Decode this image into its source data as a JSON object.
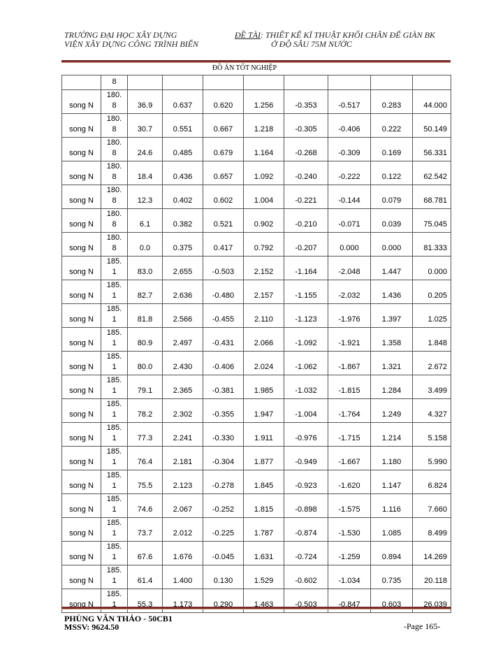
{
  "header": {
    "left_line1": "TRƯỜNG ĐẠI HỌC XÂY DỰNG",
    "left_line2": "VIỆN XÂY DỰNG CÔNG TRÌNH BIỂN",
    "topic_label": "ĐỀ TÀI",
    "topic_line1": ": THIẾT KẾ KĨ THUẬT KHỐI CHÂN ĐẾ GIÀN BK",
    "topic_line2": "Ở ĐỘ SÂU 75M NƯỚC",
    "subtitle": "ĐỒ ÁN TỐT NGHIỆP"
  },
  "table": {
    "first_row": [
      "",
      "8",
      "",
      "",
      "",
      "",
      "",
      "",
      "",
      ""
    ],
    "rows": [
      [
        "song N",
        "180.\n8",
        "36.9",
        "0.637",
        "0.620",
        "1.256",
        "-0.353",
        "-0.517",
        "0.283",
        "44.000"
      ],
      [
        "song N",
        "180.\n8",
        "30.7",
        "0.551",
        "0.667",
        "1.218",
        "-0.305",
        "-0.406",
        "0.222",
        "50.149"
      ],
      [
        "song N",
        "180.\n8",
        "24.6",
        "0.485",
        "0.679",
        "1.164",
        "-0.268",
        "-0.309",
        "0.169",
        "56.331"
      ],
      [
        "song N",
        "180.\n8",
        "18.4",
        "0.436",
        "0.657",
        "1.092",
        "-0.240",
        "-0.222",
        "0.122",
        "62.542"
      ],
      [
        "song N",
        "180.\n8",
        "12.3",
        "0.402",
        "0.602",
        "1.004",
        "-0.221",
        "-0.144",
        "0.079",
        "68.781"
      ],
      [
        "song N",
        "180.\n8",
        "6.1",
        "0.382",
        "0.521",
        "0.902",
        "-0.210",
        "-0.071",
        "0.039",
        "75.045"
      ],
      [
        "song N",
        "180.\n8",
        "0.0",
        "0.375",
        "0.417",
        "0.792",
        "-0.207",
        "0.000",
        "0.000",
        "81.333"
      ],
      [
        "song N",
        "185.\n1",
        "83.0",
        "2.655",
        "-0.503",
        "2.152",
        "-1.164",
        "-2.048",
        "1.447",
        "0.000"
      ],
      [
        "song N",
        "185.\n1",
        "82.7",
        "2.636",
        "-0.480",
        "2.157",
        "-1.155",
        "-2.032",
        "1.436",
        "0.205"
      ],
      [
        "song N",
        "185.\n1",
        "81.8",
        "2.566",
        "-0.455",
        "2.110",
        "-1.123",
        "-1.976",
        "1.397",
        "1.025"
      ],
      [
        "song N",
        "185.\n1",
        "80.9",
        "2.497",
        "-0.431",
        "2.066",
        "-1.092",
        "-1.921",
        "1.358",
        "1.848"
      ],
      [
        "song N",
        "185.\n1",
        "80.0",
        "2.430",
        "-0.406",
        "2.024",
        "-1.062",
        "-1.867",
        "1.321",
        "2.672"
      ],
      [
        "song N",
        "185.\n1",
        "79.1",
        "2.365",
        "-0.381",
        "1.985",
        "-1.032",
        "-1.815",
        "1.284",
        "3.499"
      ],
      [
        "song N",
        "185.\n1",
        "78.2",
        "2.302",
        "-0.355",
        "1.947",
        "-1.004",
        "-1.764",
        "1.249",
        "4.327"
      ],
      [
        "song N",
        "185.\n1",
        "77.3",
        "2.241",
        "-0.330",
        "1.911",
        "-0.976",
        "-1.715",
        "1.214",
        "5.158"
      ],
      [
        "song N",
        "185.\n1",
        "76.4",
        "2.181",
        "-0.304",
        "1.877",
        "-0.949",
        "-1.667",
        "1.180",
        "5.990"
      ],
      [
        "song N",
        "185.\n1",
        "75.5",
        "2.123",
        "-0.278",
        "1.845",
        "-0.923",
        "-1.620",
        "1.147",
        "6.824"
      ],
      [
        "song N",
        "185.\n1",
        "74.6",
        "2.067",
        "-0.252",
        "1.815",
        "-0.898",
        "-1.575",
        "1.116",
        "7.660"
      ],
      [
        "song N",
        "185.\n1",
        "73.7",
        "2.012",
        "-0.225",
        "1.787",
        "-0.874",
        "-1.530",
        "1.085",
        "8.499"
      ],
      [
        "song N",
        "185.\n1",
        "67.6",
        "1.676",
        "-0.045",
        "1.631",
        "-0.724",
        "-1.259",
        "0.894",
        "14.269"
      ],
      [
        "song N",
        "185.\n1",
        "61.4",
        "1.400",
        "0.130",
        "1.529",
        "-0.602",
        "-1.034",
        "0.735",
        "20.118"
      ],
      [
        "song N",
        "185.\n1",
        "55.3",
        "1.173",
        "0.290",
        "1.463",
        "-0.503",
        "-0.847",
        "0.603",
        "26.039"
      ]
    ]
  },
  "footer": {
    "author": "PHÙNG VĂN THẢO - 50CB1",
    "student_id": "MSSV: 9624.50",
    "page": "-Page 165-"
  }
}
